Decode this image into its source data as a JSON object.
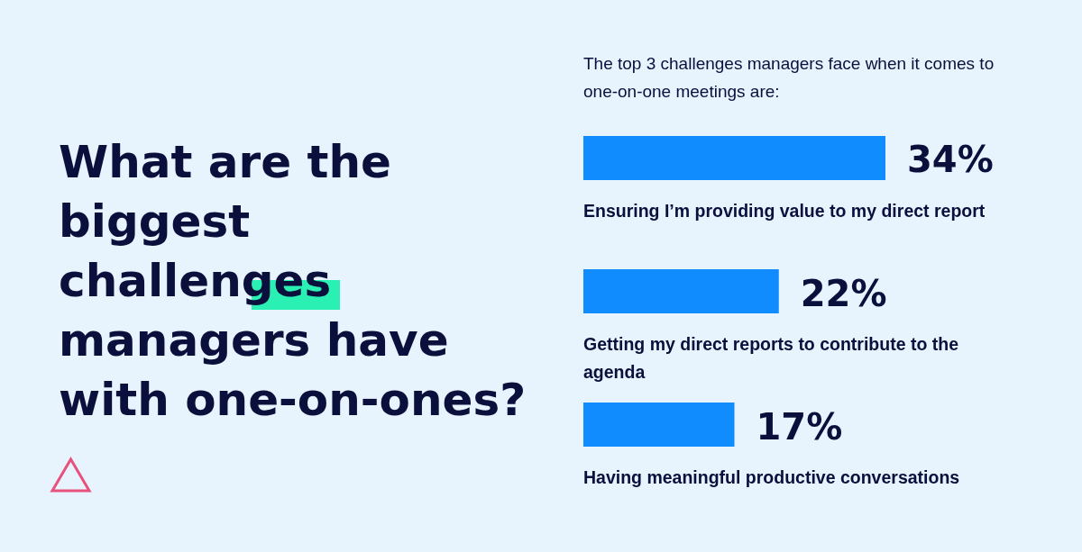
{
  "chart_data": {
    "type": "bar",
    "orientation": "horizontal",
    "title": "What are the biggest challenges managers have with one-on-ones?",
    "subtitle": "The top 3 challenges managers face when it comes to one-on-one meetings are:",
    "categories": [
      "Ensuring I’m providing value to my direct report",
      "Getting my direct reports to contribute to the agenda",
      "Having meaningful productive conversations"
    ],
    "values": [
      34,
      22,
      17
    ],
    "value_labels": [
      "34%",
      "22%",
      "17%"
    ],
    "color": "#118cff",
    "tick_labels": "y"
  }
}
